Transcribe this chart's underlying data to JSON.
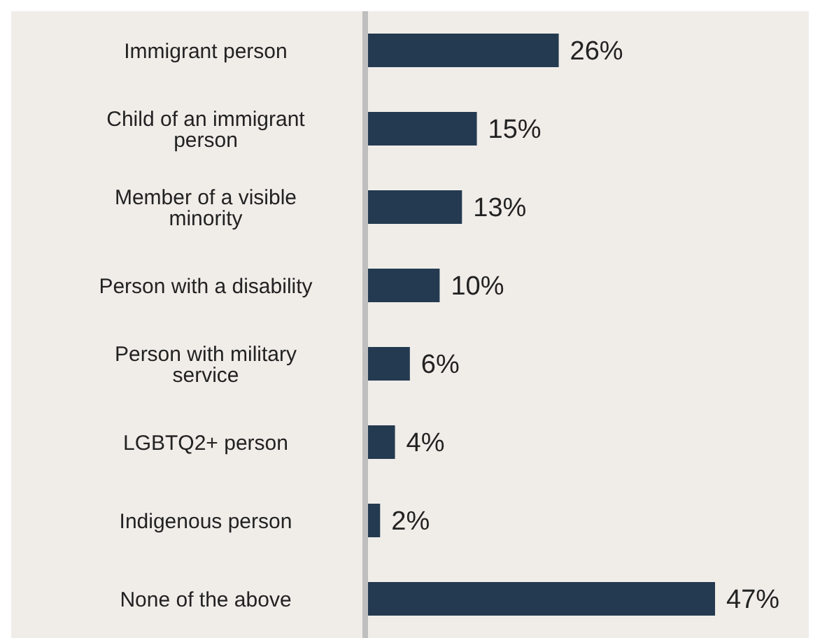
{
  "chart_data": {
    "type": "bar",
    "orientation": "horizontal",
    "categories": [
      "Immigrant person",
      "Child of an immigrant person",
      "Member of a visible minority",
      "Person with a disability",
      "Person with military service",
      "LGBTQ2+ person",
      "Indigenous person",
      "None of the above"
    ],
    "values": [
      26,
      15,
      13,
      10,
      6,
      4,
      2,
      47
    ],
    "value_labels": [
      "26%",
      "15%",
      "13%",
      "10%",
      "6%",
      "4%",
      "2%",
      "47%"
    ],
    "color": "#243a50"
  }
}
